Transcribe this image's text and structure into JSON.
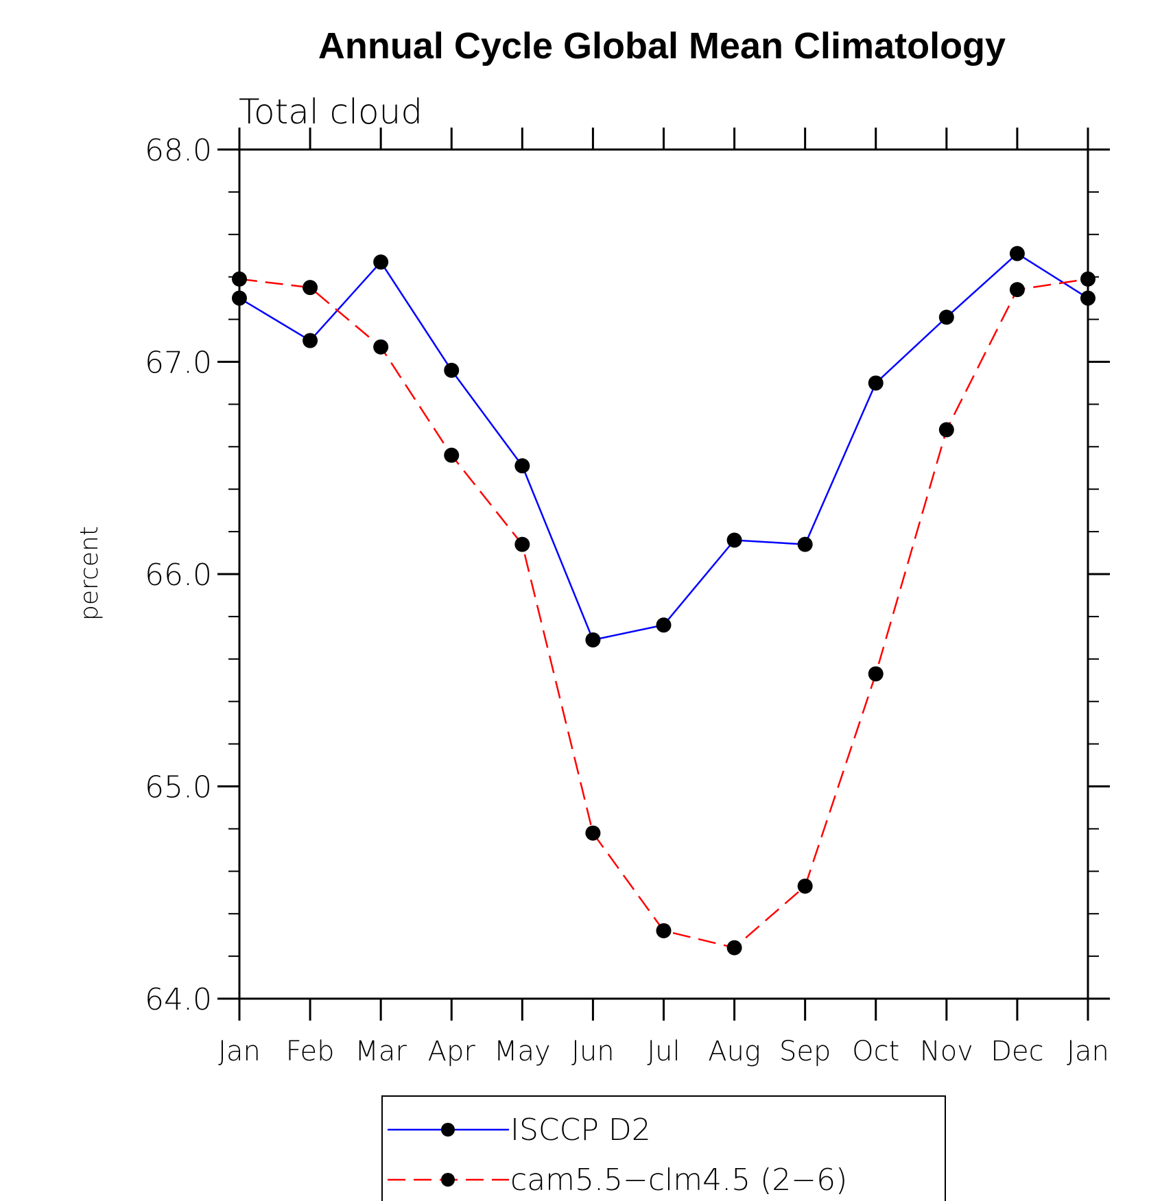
{
  "chart_data": {
    "type": "line",
    "title": "Annual Cycle Global Mean Climatology",
    "subtitle": "Total cloud",
    "xlabel": "",
    "ylabel": "percent",
    "categories": [
      "Jan",
      "Feb",
      "Mar",
      "Apr",
      "May",
      "Jun",
      "Jul",
      "Aug",
      "Sep",
      "Oct",
      "Nov",
      "Dec",
      "Jan"
    ],
    "ylim": [
      64.0,
      68.0
    ],
    "yticks": [
      "64.0",
      "65.0",
      "66.0",
      "67.0",
      "68.0"
    ],
    "grid": false,
    "legend_position": "bottom-center",
    "series": [
      {
        "name": "ISCCP D2",
        "color": "#0000ff",
        "line_style": "solid",
        "marker": "filled-circle",
        "values": [
          67.3,
          67.1,
          67.47,
          66.96,
          66.51,
          65.69,
          65.76,
          66.16,
          66.14,
          66.9,
          67.21,
          67.51,
          67.3
        ]
      },
      {
        "name": "cam5.5−clm4.5 (2−6)",
        "color": "#ff0000",
        "line_style": "dashed",
        "marker": "filled-circle",
        "values": [
          67.39,
          67.35,
          67.07,
          66.56,
          66.14,
          64.78,
          64.32,
          64.24,
          64.53,
          65.53,
          66.68,
          67.34,
          67.39
        ]
      }
    ]
  }
}
